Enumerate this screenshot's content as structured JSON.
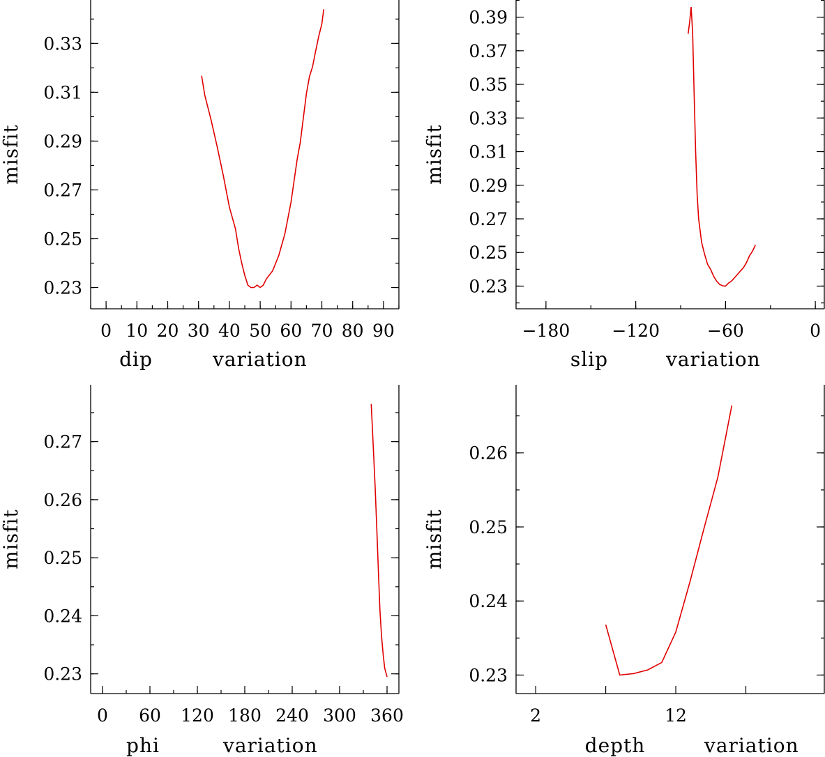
{
  "chart_data": [
    {
      "type": "line",
      "name": "dip",
      "xlabel_left": "dip",
      "xlabel_right": "variation",
      "ylabel": "misfit",
      "xlim": [
        -5,
        95
      ],
      "ylim": [
        0.2213,
        0.3478
      ],
      "xticks": [
        0,
        10,
        20,
        30,
        40,
        50,
        60,
        70,
        80,
        90
      ],
      "xtick_labels": [
        "0",
        "10",
        "20",
        "30",
        "40",
        "50",
        "60",
        "70",
        "80",
        "90"
      ],
      "xminor": 5,
      "yticks": [
        0.23,
        0.25,
        0.27,
        0.29,
        0.31,
        0.33
      ],
      "ytick_labels": [
        "0.23",
        "0.25",
        "0.27",
        "0.29",
        "0.31",
        "0.33"
      ],
      "yminor": 0.01,
      "series": [
        {
          "name": "misfit",
          "color": "#e00000",
          "x": [
            31,
            32,
            34,
            36,
            38,
            40,
            42,
            43,
            44,
            45,
            46,
            47,
            48,
            49,
            50,
            51,
            52,
            53,
            54,
            56,
            58,
            60,
            62,
            63,
            64,
            65,
            66,
            67,
            68,
            69,
            70,
            70.6
          ],
          "y": [
            0.3168,
            0.309,
            0.299,
            0.288,
            0.276,
            0.263,
            0.254,
            0.246,
            0.24,
            0.235,
            0.231,
            0.23,
            0.23,
            0.231,
            0.23,
            0.231,
            0.2335,
            0.2352,
            0.2368,
            0.243,
            0.252,
            0.265,
            0.2825,
            0.2895,
            0.2995,
            0.3095,
            0.3165,
            0.3205,
            0.327,
            0.333,
            0.338,
            0.344
          ]
        }
      ]
    },
    {
      "type": "line",
      "name": "slip",
      "xlabel_left": "slip",
      "xlabel_right": "variation",
      "ylabel": "misfit",
      "xlim": [
        -200,
        6
      ],
      "ylim": [
        0.2165,
        0.4002
      ],
      "xticks": [
        -180,
        -120,
        -60,
        0
      ],
      "xtick_labels": [
        "−180",
        "−120",
        "−60",
        "0"
      ],
      "xminor": 30,
      "yticks": [
        0.23,
        0.25,
        0.27,
        0.29,
        0.31,
        0.33,
        0.35,
        0.37,
        0.39
      ],
      "ytick_labels": [
        "0.23",
        "0.25",
        "0.27",
        "0.29",
        "0.31",
        "0.33",
        "0.35",
        "0.37",
        "0.39"
      ],
      "yminor": 0.01,
      "series": [
        {
          "name": "misfit",
          "color": "#e00000",
          "x": [
            -85,
            -84,
            -83,
            -82,
            -81,
            -80,
            -79,
            -78,
            -76,
            -74,
            -72,
            -70,
            -68,
            -66,
            -64,
            -62,
            -60,
            -58,
            -56,
            -54,
            -52,
            -50,
            -48,
            -46,
            -44,
            -42,
            -40
          ],
          "y": [
            0.38,
            0.387,
            0.396,
            0.381,
            0.345,
            0.31,
            0.285,
            0.27,
            0.256,
            0.249,
            0.243,
            0.24,
            0.236,
            0.233,
            0.231,
            0.2302,
            0.23,
            0.2318,
            0.233,
            0.235,
            0.237,
            0.239,
            0.241,
            0.244,
            0.248,
            0.2508,
            0.2545
          ]
        }
      ]
    },
    {
      "type": "line",
      "name": "phi",
      "xlabel_left": "phi",
      "xlabel_right": "variation",
      "ylabel": "misfit",
      "xlim": [
        -15,
        375
      ],
      "ylim": [
        0.2266,
        0.2798
      ],
      "xticks": [
        0,
        60,
        120,
        180,
        240,
        300,
        360
      ],
      "xtick_labels": [
        "0",
        "60",
        "120",
        "180",
        "240",
        "300",
        "360"
      ],
      "xminor": 30,
      "yticks": [
        0.23,
        0.24,
        0.25,
        0.26,
        0.27
      ],
      "ytick_labels": [
        "0.23",
        "0.24",
        "0.25",
        "0.26",
        "0.27"
      ],
      "yminor": 0.005,
      "series": [
        {
          "name": "misfit",
          "color": "#e00000",
          "x": [
            340,
            343,
            345,
            347,
            349,
            351,
            353,
            355,
            357,
            360
          ],
          "y": [
            0.2765,
            0.268,
            0.262,
            0.255,
            0.248,
            0.241,
            0.2365,
            0.2335,
            0.231,
            0.2295
          ]
        }
      ]
    },
    {
      "type": "line",
      "name": "depth",
      "xlabel_left": "depth",
      "xlabel_right": "variation",
      "ylabel": "misfit",
      "xlim": [
        0.6,
        22.6
      ],
      "ylim": [
        0.2275,
        0.2692
      ],
      "xticks": [
        2,
        7,
        12,
        17
      ],
      "xtick_labels": [
        "2",
        "",
        "12",
        ""
      ],
      "xminor": null,
      "yticks": [
        0.23,
        0.24,
        0.25,
        0.26
      ],
      "ytick_labels": [
        "0.23",
        "0.24",
        "0.25",
        "0.26"
      ],
      "yminor": 0.005,
      "series": [
        {
          "name": "misfit",
          "color": "#e00000",
          "x": [
            7.0,
            8.0,
            9.0,
            10.0,
            11.0,
            12.0,
            13.0,
            14.0,
            15.0,
            16.0
          ],
          "y": [
            0.2368,
            0.23,
            0.2302,
            0.2307,
            0.2317,
            0.2358,
            0.2425,
            0.2497,
            0.2567,
            0.2664
          ]
        }
      ]
    }
  ]
}
